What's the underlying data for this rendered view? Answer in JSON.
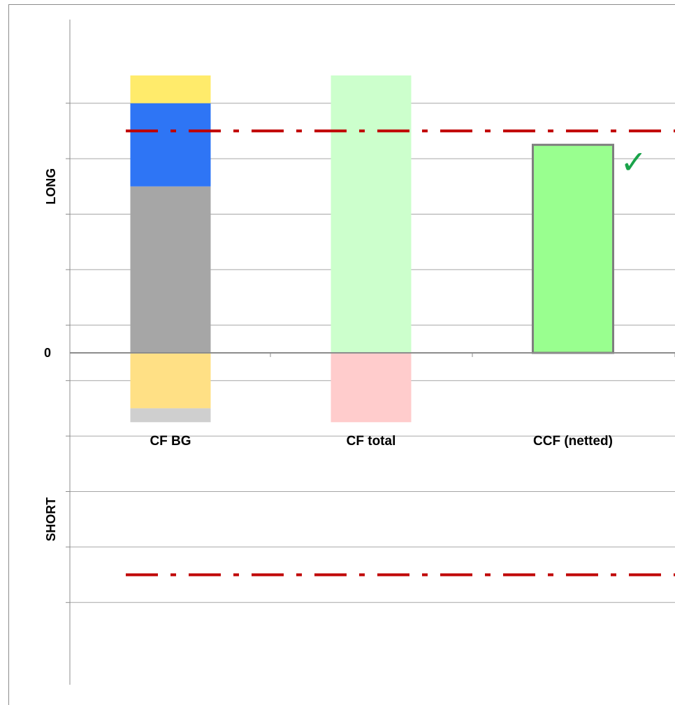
{
  "chart_data": {
    "type": "bar",
    "stacked": true,
    "categories": [
      "CF BG",
      "CF total",
      "CCF (netted)"
    ],
    "y_tick_labels": [
      "0"
    ],
    "side_labels": {
      "upper": "LONG",
      "lower": "SHORT"
    },
    "ylim": [
      -9,
      10
    ],
    "grid": true,
    "legend": "none",
    "series": [
      {
        "color": "#A6A6A6",
        "values": [
          6,
          0,
          0
        ]
      },
      {
        "color": "#2E75F5",
        "values": [
          3,
          0,
          0
        ]
      },
      {
        "color": "#FFEB6B",
        "values": [
          1,
          0,
          0
        ]
      },
      {
        "color": "#FFE085",
        "values": [
          -2,
          0,
          0
        ]
      },
      {
        "color": "#CFCFCF",
        "values": [
          -0.5,
          0,
          0
        ]
      },
      {
        "color": "#CCFFCC",
        "values": [
          0,
          10,
          0
        ]
      },
      {
        "color": "#FFCCCC",
        "values": [
          0,
          -2.5,
          0
        ]
      },
      {
        "color": "#99FF8F",
        "border": "#7F7F7F",
        "values": [
          0,
          0,
          7.5
        ]
      }
    ],
    "limit_lines": [
      {
        "value": 8,
        "color": "#C00000",
        "style": "dash-dot"
      },
      {
        "value": -8,
        "color": "#C00000",
        "style": "dash-dot"
      }
    ],
    "annotations": [
      {
        "category": "CCF (netted)",
        "symbol": "✓",
        "color": "#1AA34A"
      }
    ]
  }
}
